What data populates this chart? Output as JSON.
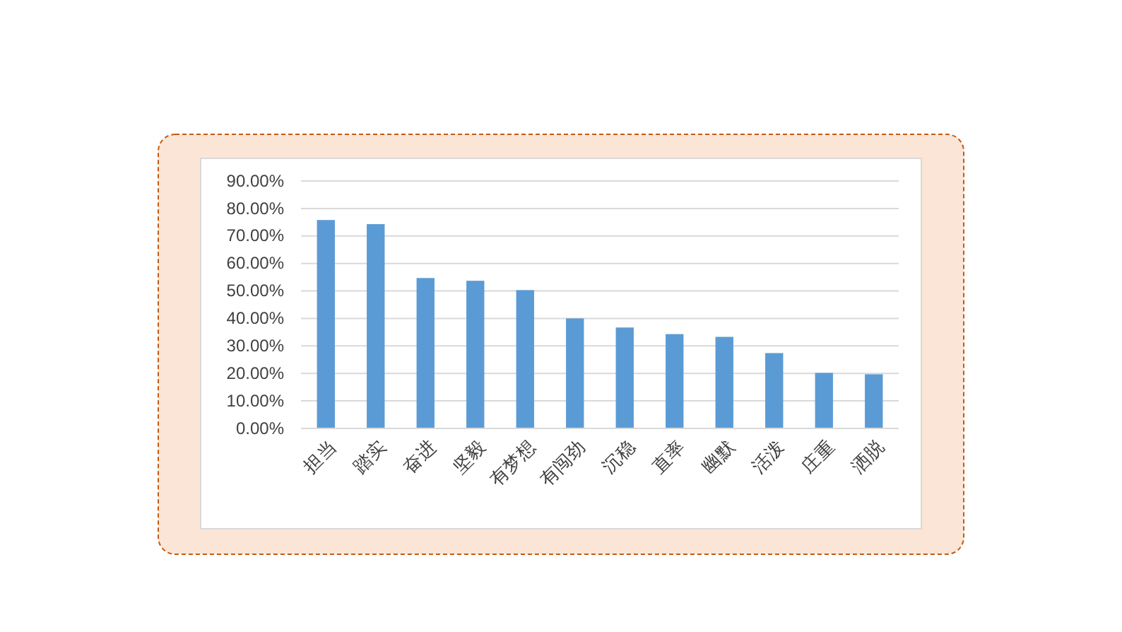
{
  "chart_data": {
    "type": "bar",
    "categories": [
      "担当",
      "踏实",
      "奋进",
      "坚毅",
      "有梦想",
      "有闯劲",
      "沉稳",
      "直率",
      "幽默",
      "活泼",
      "庄重",
      "洒脱"
    ],
    "values": [
      75.8,
      74.3,
      54.7,
      53.7,
      50.3,
      40.0,
      36.7,
      34.3,
      33.3,
      27.4,
      20.2,
      19.7
    ],
    "color": "#5b9bd5",
    "ylim": [
      0,
      90
    ],
    "yticks": [
      {
        "value": 0,
        "label": "0.00%"
      },
      {
        "value": 10,
        "label": "10.00%"
      },
      {
        "value": 20,
        "label": "20.00%"
      },
      {
        "value": 30,
        "label": "30.00%"
      },
      {
        "value": 40,
        "label": "40.00%"
      },
      {
        "value": 50,
        "label": "50.00%"
      },
      {
        "value": 60,
        "label": "60.00%"
      },
      {
        "value": 70,
        "label": "70.00%"
      },
      {
        "value": 80,
        "label": "80.00%"
      },
      {
        "value": 90,
        "label": "90.00%"
      }
    ],
    "grid": "y"
  }
}
